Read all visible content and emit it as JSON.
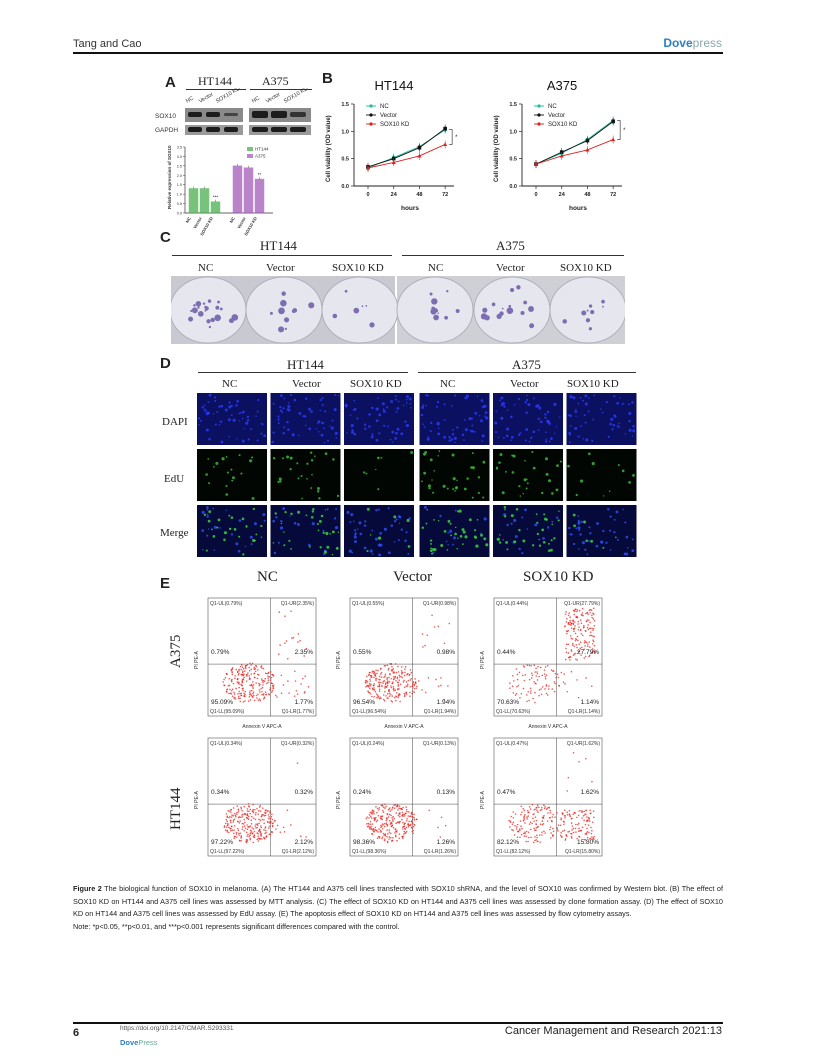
{
  "header": {
    "authors": "Tang and Cao",
    "brand_part1": "Dove",
    "brand_part2": "press"
  },
  "panelA": {
    "letter": "A",
    "group_labels": [
      "HT144",
      "A375"
    ],
    "lane_labels": [
      "NC",
      "Vector",
      "SOX10 KD",
      "NC",
      "Vector",
      "SOX10 KD"
    ],
    "blot_labels": [
      "SOX10",
      "GAPDH"
    ],
    "chart_data": {
      "type": "bar",
      "categories": [
        "NC",
        "Vector",
        "SOX10 KD",
        "NC",
        "Vector",
        "SOX10 KD"
      ],
      "series": [
        {
          "name": "HT144",
          "values": [
            1.3,
            1.3,
            0.6,
            null,
            null,
            null
          ]
        },
        {
          "name": "A375",
          "values": [
            null,
            null,
            null,
            2.5,
            2.4,
            1.8
          ]
        }
      ],
      "annotations": [
        "",
        "",
        "***",
        "",
        "",
        "**"
      ],
      "ylabel": "Relative expression of SOX10",
      "ylim": [
        0,
        3.5
      ],
      "yticks": [
        "0.0",
        "0.5",
        "1.0",
        "1.5",
        "2.0",
        "2.5",
        "3.0",
        "3.5"
      ],
      "colors": {
        "HT144": "#4caf50",
        "A375": "#a25bb8"
      }
    }
  },
  "panelB": {
    "letter": "B",
    "chart_data": [
      {
        "type": "line",
        "title": "HT144",
        "x": [
          0,
          24,
          48,
          72
        ],
        "series": [
          {
            "name": "NC",
            "values": [
              0.33,
              0.52,
              0.72,
              1.03
            ]
          },
          {
            "name": "Vector",
            "values": [
              0.35,
              0.5,
              0.7,
              1.05
            ]
          },
          {
            "name": "SOX10 KD",
            "values": [
              0.33,
              0.43,
              0.55,
              0.76
            ]
          }
        ],
        "significance": "*",
        "xlabel": "hours",
        "ylabel": "Cell viability (OD value)",
        "ylim": [
          0,
          1.5
        ],
        "yticks": [
          "0.0",
          "0.5",
          "1.0",
          "1.5"
        ],
        "xticks": [
          "0",
          "24",
          "48",
          "72"
        ]
      },
      {
        "type": "line",
        "title": "A375",
        "x": [
          0,
          24,
          48,
          72
        ],
        "series": [
          {
            "name": "NC",
            "values": [
              0.4,
              0.6,
              0.85,
              1.2
            ]
          },
          {
            "name": "Vector",
            "values": [
              0.4,
              0.62,
              0.83,
              1.18
            ]
          },
          {
            "name": "SOX10 KD",
            "values": [
              0.4,
              0.55,
              0.66,
              0.85
            ]
          }
        ],
        "significance": "*",
        "xlabel": "hours",
        "ylabel": "Cell viability (OD value)",
        "ylim": [
          0,
          1.5
        ],
        "yticks": [
          "0.0",
          "0.5",
          "1.0",
          "1.5"
        ],
        "xticks": [
          "0",
          "24",
          "48",
          "72"
        ]
      }
    ],
    "colors": {
      "NC": "#1abc9c",
      "Vector": "#111111",
      "SOX10 KD": "#e02020"
    }
  },
  "panelC": {
    "letter": "C",
    "groups": [
      "HT144",
      "A375"
    ],
    "columns": [
      "NC",
      "Vector",
      "SOX10 KD",
      "NC",
      "Vector",
      "SOX10 KD"
    ]
  },
  "panelD": {
    "letter": "D",
    "groups": [
      "HT144",
      "A375"
    ],
    "columns": [
      "NC",
      "Vector",
      "SOX10 KD",
      "NC",
      "Vector",
      "SOX10 KD"
    ],
    "rows": [
      "DAPI",
      "EdU",
      "Merge"
    ]
  },
  "panelE": {
    "letter": "E",
    "columns": [
      "NC",
      "Vector",
      "SOX10 KD"
    ],
    "rows": [
      "A375",
      "HT144"
    ],
    "axis_x": "Annexin V APC-A",
    "axis_y": "PI PE-A",
    "plots": [
      {
        "ul": "Q1-UL(0.79%)",
        "ur": "Q1-UR(2.35%)",
        "ll": "Q1-LL(95.09%)",
        "lr": "Q1-LR(1.77%)",
        "v_ul": "0.79%",
        "v_ur": "2.35%",
        "v_ll": "95.09%",
        "v_lr": "1.77%"
      },
      {
        "ul": "Q1-UL(0.55%)",
        "ur": "Q1-UR(0.98%)",
        "ll": "Q1-LL(96.54%)",
        "lr": "Q1-LR(1.94%)",
        "v_ul": "0.55%",
        "v_ur": "0.98%",
        "v_ll": "96.54%",
        "v_lr": "1.94%"
      },
      {
        "ul": "Q1-UL(0.44%)",
        "ur": "Q1-UR(27.79%)",
        "ll": "Q1-LL(70.63%)",
        "lr": "Q1-LR(1.14%)",
        "v_ul": "0.44%",
        "v_ur": "27.79%",
        "v_ll": "70.63%",
        "v_lr": "1.14%"
      },
      {
        "ul": "Q1-UL(0.34%)",
        "ur": "Q1-UR(0.32%)",
        "ll": "Q1-LL(97.22%)",
        "lr": "Q1-LR(2.12%)",
        "v_ul": "0.34%",
        "v_ur": "0.32%",
        "v_ll": "97.22%",
        "v_lr": "2.12%"
      },
      {
        "ul": "Q1-UL(0.24%)",
        "ur": "Q1-UR(0.13%)",
        "ll": "Q1-LL(98.36%)",
        "lr": "Q1-LR(1.26%)",
        "v_ul": "0.24%",
        "v_ur": "0.13%",
        "v_ll": "98.36%",
        "v_lr": "1.26%"
      },
      {
        "ul": "Q1-UL(0.47%)",
        "ur": "Q1-UR(1.62%)",
        "ll": "Q1-LL(82.12%)",
        "lr": "Q1-LR(15.80%)",
        "v_ul": "0.47%",
        "v_ur": "1.62%",
        "v_ll": "82.12%",
        "v_lr": "15.80%"
      }
    ]
  },
  "caption": {
    "label": "Figure 2",
    "text": "The biological function of SOX10 in melanoma. (A) The HT144 and A375 cell lines transfected with SOX10 shRNA, and the level of SOX10 was confirmed by Western blot. (B) The effect of SOX10 KD on HT144 and A375 cell lines was assessed by MTT analysis. (C) The effect of SOX10 KD on HT144 and A375 cell lines was assessed by clone formation assay. (D) The effect of SOX10 KD on HT144 and A375 cell lines was assessed by EdU assay. (E) The apoptosis effect of SOX10 KD on HT144 and A375 cell lines was assessed by flow cytometry assays.",
    "note": "Note: *p<0.05, **p<0.01, and ***p<0.001 represents significant differences compared with the control."
  },
  "footer": {
    "page": "6",
    "doi": "https://doi.org/10.2147/CMAR.S293331",
    "brand_part1": "Dove",
    "brand_part2": "Press",
    "journal": "Cancer Management and Research 2021:13"
  }
}
